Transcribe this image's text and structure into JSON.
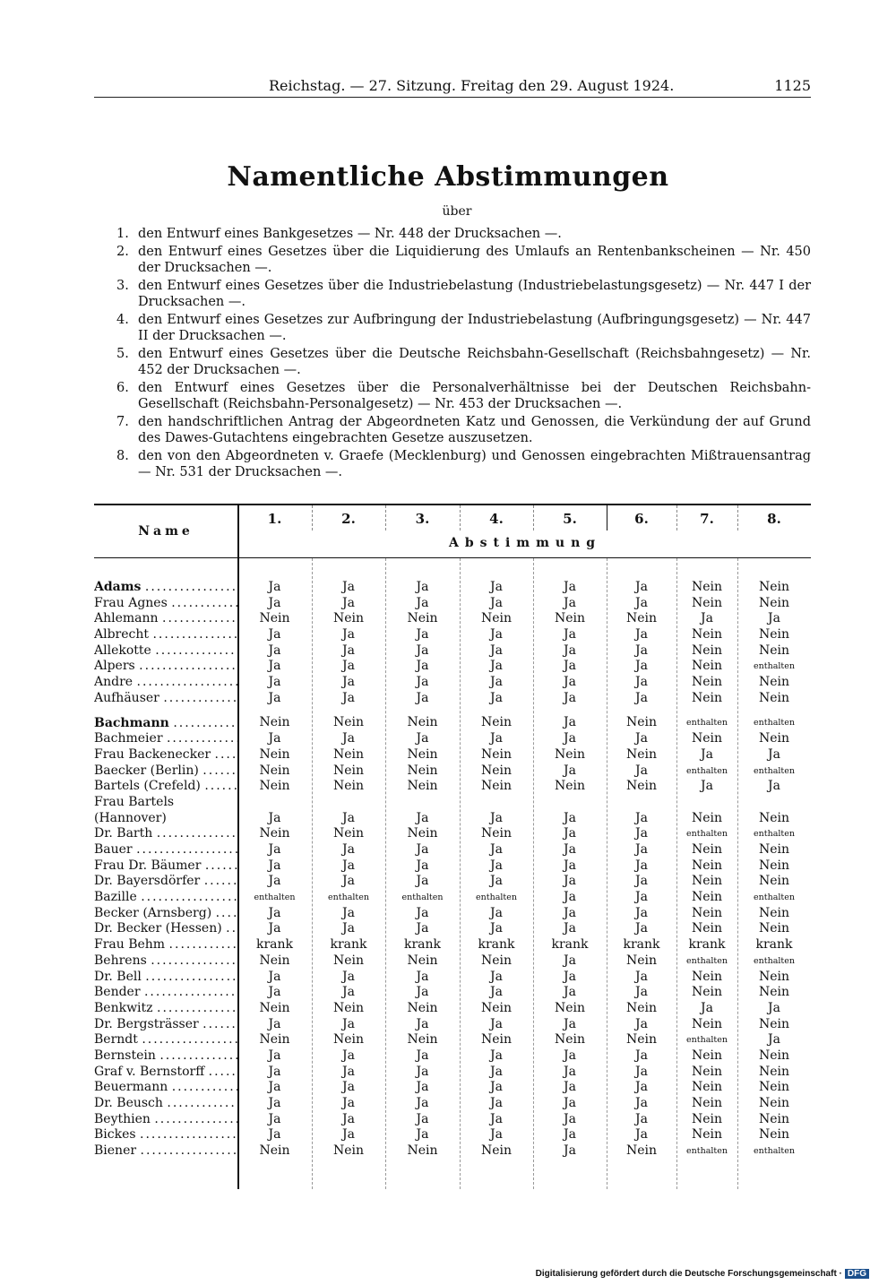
{
  "header": {
    "center": "Reichstag. — 27. Sitzung. Freitag den 29. August 1924.",
    "page_number": "1125"
  },
  "title": "Namentliche Abstimmungen",
  "subtitle": "über",
  "items": [
    {
      "num": "1.",
      "text": "den Entwurf eines Bankgesetzes — Nr. 448 der Drucksachen —."
    },
    {
      "num": "2.",
      "text": "den Entwurf eines Gesetzes über die Liquidierung des Umlaufs an Rentenbankscheinen — Nr. 450 der Drucksachen —."
    },
    {
      "num": "3.",
      "text": "den Entwurf eines Gesetzes über die Industriebelastung (Industriebelastungsgesetz) — Nr. 447 I der Drucksachen —."
    },
    {
      "num": "4.",
      "text": "den Entwurf eines Gesetzes zur Aufbringung der Industriebelastung (Aufbringungsgesetz) — Nr. 447 II der Drucksachen —."
    },
    {
      "num": "5.",
      "text": "den Entwurf eines Gesetzes über die Deutsche Reichsbahn-Gesellschaft (Reichsbahngesetz) — Nr. 452 der Drucksachen —."
    },
    {
      "num": "6.",
      "text": "den Entwurf eines Gesetzes über die Personalverhältnisse bei der Deutschen Reichsbahn-Gesellschaft (Reichsbahn-Personalgesetz) — Nr. 453 der Drucksachen —."
    },
    {
      "num": "7.",
      "text": "den handschriftlichen Antrag der Abgeordneten Katz und Genossen, die Verkündung der auf Grund des Dawes-Gutachtens eingebrachten Gesetze auszusetzen."
    },
    {
      "num": "8.",
      "text": "den von den Abgeordneten v. Graefe (Mecklenburg) und Genossen eingebrachten Mißtrauensantrag — Nr. 531 der Drucksachen —."
    }
  ],
  "table": {
    "name_header": "Name",
    "group_header": "Abstimmung",
    "columns": [
      "1.",
      "2.",
      "3.",
      "4.",
      "5.",
      "6.",
      "7.",
      "8."
    ],
    "rows": [
      {
        "name": "Adams",
        "votes": [
          "Ja",
          "Ja",
          "Ja",
          "Ja",
          "Ja",
          "Ja",
          "Nein",
          "Nein"
        ]
      },
      {
        "name": "Frau Agnes",
        "votes": [
          "Ja",
          "Ja",
          "Ja",
          "Ja",
          "Ja",
          "Ja",
          "Nein",
          "Nein"
        ]
      },
      {
        "name": "Ahlemann",
        "votes": [
          "Nein",
          "Nein",
          "Nein",
          "Nein",
          "Nein",
          "Nein",
          "Ja",
          "Ja"
        ]
      },
      {
        "name": "Albrecht",
        "votes": [
          "Ja",
          "Ja",
          "Ja",
          "Ja",
          "Ja",
          "Ja",
          "Nein",
          "Nein"
        ]
      },
      {
        "name": "Allekotte",
        "votes": [
          "Ja",
          "Ja",
          "Ja",
          "Ja",
          "Ja",
          "Ja",
          "Nein",
          "Nein"
        ]
      },
      {
        "name": "Alpers",
        "votes": [
          "Ja",
          "Ja",
          "Ja",
          "Ja",
          "Ja",
          "Ja",
          "Nein",
          "enthalten"
        ]
      },
      {
        "name": "Andre",
        "votes": [
          "Ja",
          "Ja",
          "Ja",
          "Ja",
          "Ja",
          "Ja",
          "Nein",
          "Nein"
        ]
      },
      {
        "name": "Aufhäuser",
        "votes": [
          "Ja",
          "Ja",
          "Ja",
          "Ja",
          "Ja",
          "Ja",
          "Nein",
          "Nein"
        ]
      },
      {
        "name": "Bachmann",
        "votes": [
          "Nein",
          "Nein",
          "Nein",
          "Nein",
          "Ja",
          "Nein",
          "enthalten",
          "enthalten"
        ]
      },
      {
        "name": "Bachmeier",
        "votes": [
          "Ja",
          "Ja",
          "Ja",
          "Ja",
          "Ja",
          "Ja",
          "Nein",
          "Nein"
        ]
      },
      {
        "name": "Frau Backenecker",
        "votes": [
          "Nein",
          "Nein",
          "Nein",
          "Nein",
          "Nein",
          "Nein",
          "Ja",
          "Ja"
        ]
      },
      {
        "name": "Baecker (Berlin)",
        "votes": [
          "Nein",
          "Nein",
          "Nein",
          "Nein",
          "Ja",
          "Ja",
          "enthalten",
          "enthalten"
        ]
      },
      {
        "name": "Bartels (Crefeld)",
        "votes": [
          "Nein",
          "Nein",
          "Nein",
          "Nein",
          "Nein",
          "Nein",
          "Ja",
          "Ja"
        ]
      },
      {
        "name": "Frau Bartels (Hannover)",
        "votes": [
          "Ja",
          "Ja",
          "Ja",
          "Ja",
          "Ja",
          "Ja",
          "Nein",
          "Nein"
        ]
      },
      {
        "name": "Dr. Barth",
        "votes": [
          "Nein",
          "Nein",
          "Nein",
          "Nein",
          "Ja",
          "Ja",
          "enthalten",
          "enthalten"
        ]
      },
      {
        "name": "Bauer",
        "votes": [
          "Ja",
          "Ja",
          "Ja",
          "Ja",
          "Ja",
          "Ja",
          "Nein",
          "Nein"
        ]
      },
      {
        "name": "Frau Dr. Bäumer",
        "votes": [
          "Ja",
          "Ja",
          "Ja",
          "Ja",
          "Ja",
          "Ja",
          "Nein",
          "Nein"
        ]
      },
      {
        "name": "Dr. Bayersdörfer",
        "votes": [
          "Ja",
          "Ja",
          "Ja",
          "Ja",
          "Ja",
          "Ja",
          "Nein",
          "Nein"
        ]
      },
      {
        "name": "Bazille",
        "votes": [
          "enthalten",
          "enthalten",
          "enthalten",
          "enthalten",
          "Ja",
          "Ja",
          "Nein",
          "enthalten"
        ]
      },
      {
        "name": "Becker (Arnsberg)",
        "votes": [
          "Ja",
          "Ja",
          "Ja",
          "Ja",
          "Ja",
          "Ja",
          "Nein",
          "Nein"
        ]
      },
      {
        "name": "Dr. Becker (Hessen)",
        "votes": [
          "Ja",
          "Ja",
          "Ja",
          "Ja",
          "Ja",
          "Ja",
          "Nein",
          "Nein"
        ]
      },
      {
        "name": "Frau Behm",
        "votes": [
          "krank",
          "krank",
          "krank",
          "krank",
          "krank",
          "krank",
          "krank",
          "krank"
        ]
      },
      {
        "name": "Behrens",
        "votes": [
          "Nein",
          "Nein",
          "Nein",
          "Nein",
          "Ja",
          "Nein",
          "enthalten",
          "enthalten"
        ]
      },
      {
        "name": "Dr. Bell",
        "votes": [
          "Ja",
          "Ja",
          "Ja",
          "Ja",
          "Ja",
          "Ja",
          "Nein",
          "Nein"
        ]
      },
      {
        "name": "Bender",
        "votes": [
          "Ja",
          "Ja",
          "Ja",
          "Ja",
          "Ja",
          "Ja",
          "Nein",
          "Nein"
        ]
      },
      {
        "name": "Benkwitz",
        "votes": [
          "Nein",
          "Nein",
          "Nein",
          "Nein",
          "Nein",
          "Nein",
          "Ja",
          "Ja"
        ]
      },
      {
        "name": "Dr. Bergsträsser",
        "votes": [
          "Ja",
          "Ja",
          "Ja",
          "Ja",
          "Ja",
          "Ja",
          "Nein",
          "Nein"
        ]
      },
      {
        "name": "Berndt",
        "votes": [
          "Nein",
          "Nein",
          "Nein",
          "Nein",
          "Nein",
          "Nein",
          "enthalten",
          "Ja"
        ]
      },
      {
        "name": "Bernstein",
        "votes": [
          "Ja",
          "Ja",
          "Ja",
          "Ja",
          "Ja",
          "Ja",
          "Nein",
          "Nein"
        ]
      },
      {
        "name": "Graf v. Bernstorff",
        "votes": [
          "Ja",
          "Ja",
          "Ja",
          "Ja",
          "Ja",
          "Ja",
          "Nein",
          "Nein"
        ]
      },
      {
        "name": "Beuermann",
        "votes": [
          "Ja",
          "Ja",
          "Ja",
          "Ja",
          "Ja",
          "Ja",
          "Nein",
          "Nein"
        ]
      },
      {
        "name": "Dr. Beusch",
        "votes": [
          "Ja",
          "Ja",
          "Ja",
          "Ja",
          "Ja",
          "Ja",
          "Nein",
          "Nein"
        ]
      },
      {
        "name": "Beythien",
        "votes": [
          "Ja",
          "Ja",
          "Ja",
          "Ja",
          "Ja",
          "Ja",
          "Nein",
          "Nein"
        ]
      },
      {
        "name": "Bickes",
        "votes": [
          "Ja",
          "Ja",
          "Ja",
          "Ja",
          "Ja",
          "Ja",
          "Nein",
          "Nein"
        ]
      },
      {
        "name": "Biener",
        "votes": [
          "Nein",
          "Nein",
          "Nein",
          "Nein",
          "Ja",
          "Nein",
          "enthalten",
          "enthalten"
        ]
      }
    ]
  },
  "footer": {
    "text": "Digitalisierung gefördert durch die Deutsche Forschungsgemeinschaft ·",
    "logo": "DFG"
  }
}
